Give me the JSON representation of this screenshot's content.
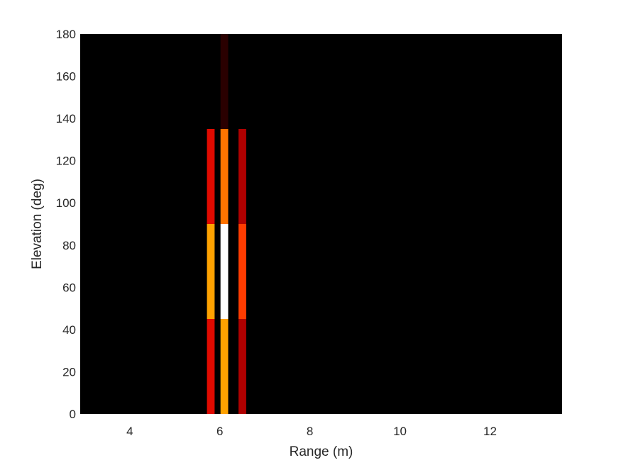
{
  "chart_data": {
    "type": "heatmap",
    "xlabel": "Range (m)",
    "ylabel": "Elevation (deg)",
    "xlim": [
      2.9,
      13.6
    ],
    "ylim": [
      0,
      180
    ],
    "x_ticks": [
      4,
      6,
      8,
      10,
      12
    ],
    "y_ticks": [
      0,
      20,
      40,
      60,
      80,
      100,
      120,
      140,
      160,
      180
    ],
    "background_color": "#000000",
    "colormap": "hot",
    "range_bins": [
      5.8,
      6.1,
      6.5
    ],
    "range_bin_width": 0.17,
    "elevation_bins": [
      {
        "from": 0,
        "to": 45
      },
      {
        "from": 45,
        "to": 90
      },
      {
        "from": 90,
        "to": 135
      },
      {
        "from": 135,
        "to": 180
      }
    ],
    "cells": [
      {
        "range": 5.8,
        "elev_from": 0,
        "elev_to": 45,
        "color": "#e00a00"
      },
      {
        "range": 5.8,
        "elev_from": 45,
        "elev_to": 90,
        "color": "#ffa200"
      },
      {
        "range": 5.8,
        "elev_from": 90,
        "elev_to": 135,
        "color": "#e00a00"
      },
      {
        "range": 6.1,
        "elev_from": 0,
        "elev_to": 45,
        "color": "#ffa200"
      },
      {
        "range": 6.1,
        "elev_from": 45,
        "elev_to": 90,
        "color": "#ffffff"
      },
      {
        "range": 6.1,
        "elev_from": 90,
        "elev_to": 135,
        "color": "#ff7400"
      },
      {
        "range": 6.1,
        "elev_from": 135,
        "elev_to": 180,
        "color": "#2a0000"
      },
      {
        "range": 6.5,
        "elev_from": 0,
        "elev_to": 45,
        "color": "#b00000"
      },
      {
        "range": 6.5,
        "elev_from": 45,
        "elev_to": 90,
        "color": "#ff3c00"
      },
      {
        "range": 6.5,
        "elev_from": 90,
        "elev_to": 135,
        "color": "#b00000"
      }
    ]
  }
}
